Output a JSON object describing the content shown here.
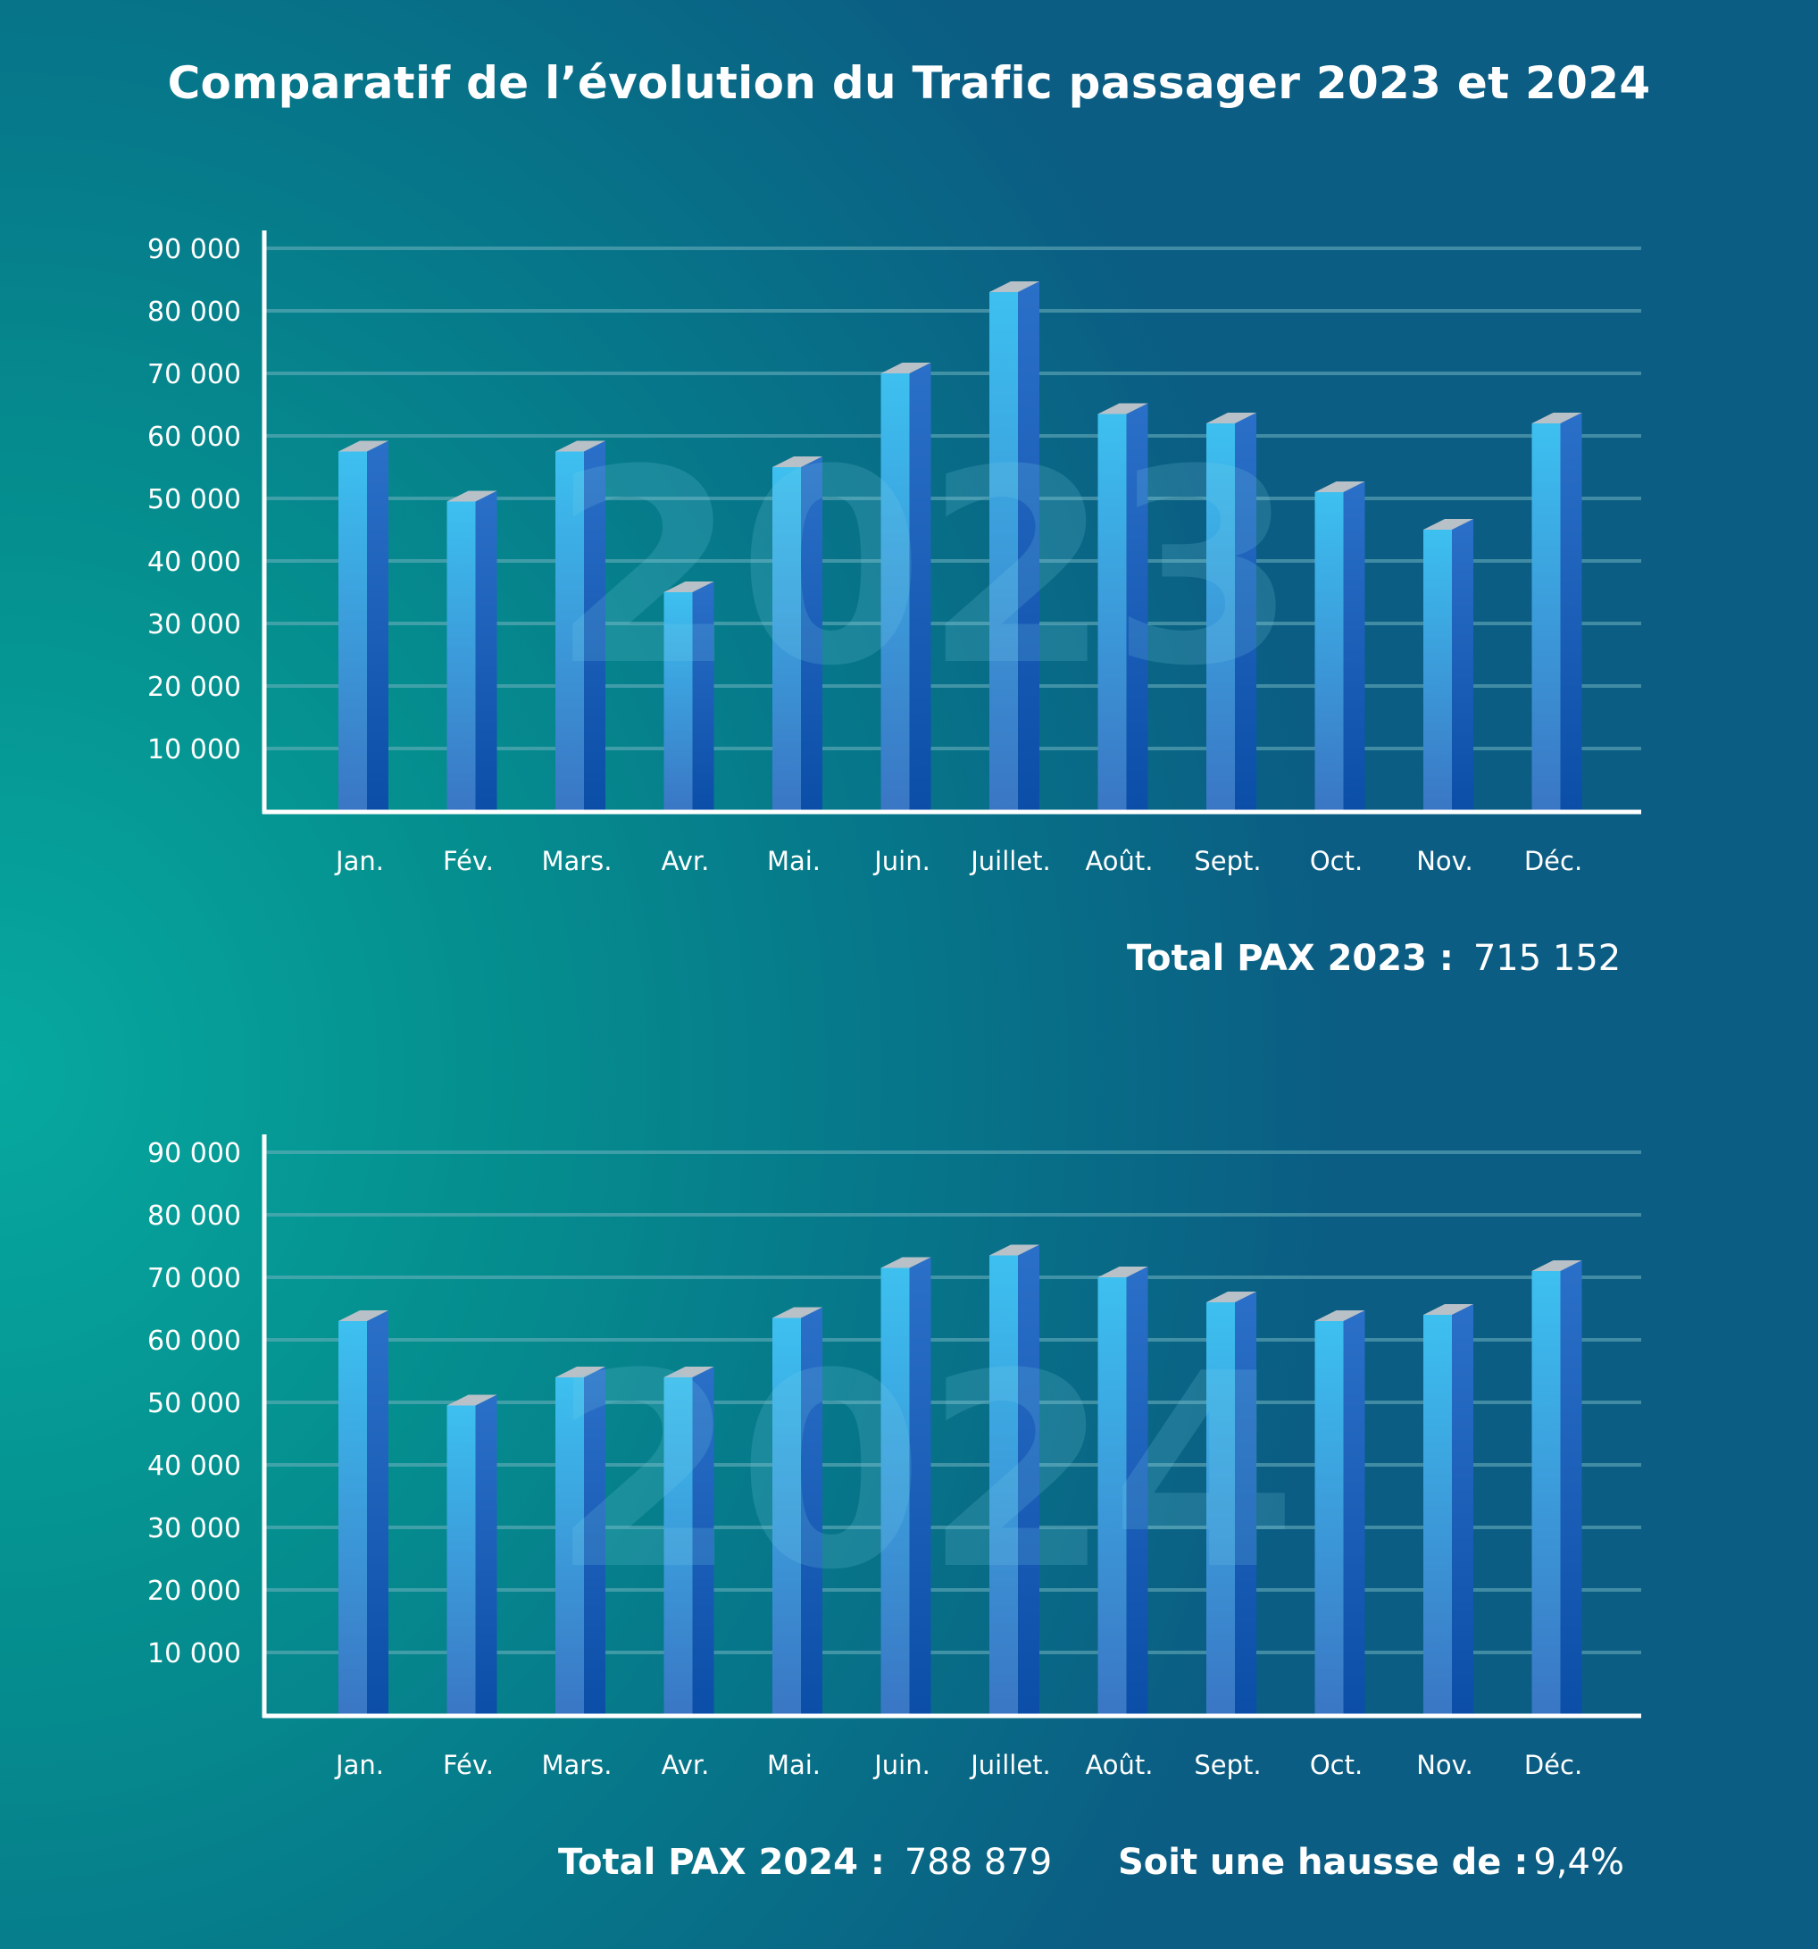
{
  "title": "Comparatif de l’évolution du Trafic passager 2023 et 2024",
  "colors": {
    "bar_front_top": "#3dc0f0",
    "bar_front_bottom": "#3a76c4",
    "bar_side_top": "#2b70c8",
    "bar_side_bottom": "#0b4ea8",
    "bar_cap": "#b8c0c8",
    "grid": "#6fb2c0",
    "axis": "#ffffff"
  },
  "chart_data": [
    {
      "type": "bar",
      "watermark": "2023",
      "categories": [
        "Jan.",
        "Fév.",
        "Mars.",
        "Avr.",
        "Mai.",
        "Juin.",
        "Juillet.",
        "Août.",
        "Sept.",
        "Oct.",
        "Nov.",
        "Déc."
      ],
      "values": [
        57500,
        49500,
        57500,
        35000,
        55000,
        70000,
        83000,
        63500,
        62000,
        51000,
        45000,
        62000
      ],
      "yticks": [
        10000,
        20000,
        30000,
        40000,
        50000,
        60000,
        70000,
        80000,
        90000
      ],
      "ytick_labels": [
        "10 000",
        "20 000",
        "30 000",
        "40 000",
        "50 000",
        "60 000",
        "70 000",
        "80 000",
        "90 000"
      ],
      "ylim": [
        0,
        90000
      ],
      "grid": true,
      "total_label": "Total PAX 2023 :",
      "total_value": "715 152"
    },
    {
      "type": "bar",
      "watermark": "2024",
      "categories": [
        "Jan.",
        "Fév.",
        "Mars.",
        "Avr.",
        "Mai.",
        "Juin.",
        "Juillet.",
        "Août.",
        "Sept.",
        "Oct.",
        "Nov.",
        "Déc."
      ],
      "values": [
        63000,
        49500,
        54000,
        54000,
        63500,
        71500,
        73500,
        70000,
        66000,
        63000,
        64000,
        71000
      ],
      "yticks": [
        10000,
        20000,
        30000,
        40000,
        50000,
        60000,
        70000,
        80000,
        90000
      ],
      "ytick_labels": [
        "10 000",
        "20 000",
        "30 000",
        "40 000",
        "50 000",
        "60 000",
        "70 000",
        "80 000",
        "90 000"
      ],
      "ylim": [
        0,
        90000
      ],
      "grid": true,
      "total_label": "Total PAX 2024 :",
      "total_value": "788 879",
      "increase_label": "Soit une hausse de  :",
      "increase_value": "9,4%"
    }
  ]
}
